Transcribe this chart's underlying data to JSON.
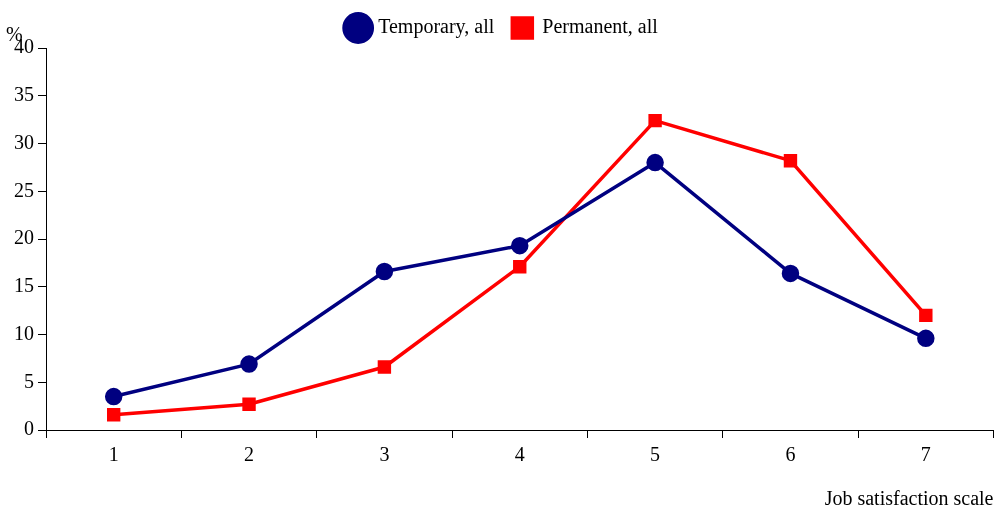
{
  "chart_data": {
    "type": "line",
    "xlabel": "Job satisfaction scale",
    "ylabel": "%",
    "categories": [
      "1",
      "2",
      "3",
      "4",
      "5",
      "6",
      "7"
    ],
    "series": [
      {
        "name": "Temporary, all",
        "color": "#000080",
        "marker": "circle",
        "values": [
          3.5,
          6.9,
          16.6,
          19.3,
          28.0,
          16.4,
          9.6
        ]
      },
      {
        "name": "Permanent, all",
        "color": "#ff0000",
        "marker": "square",
        "values": [
          1.6,
          2.7,
          6.6,
          17.1,
          32.4,
          28.2,
          12.0
        ]
      }
    ],
    "ylim": [
      0,
      40
    ],
    "yticks": [
      0,
      5,
      10,
      15,
      20,
      25,
      30,
      35,
      40
    ],
    "grid": false,
    "legend": "top",
    "line_style": "solid"
  }
}
